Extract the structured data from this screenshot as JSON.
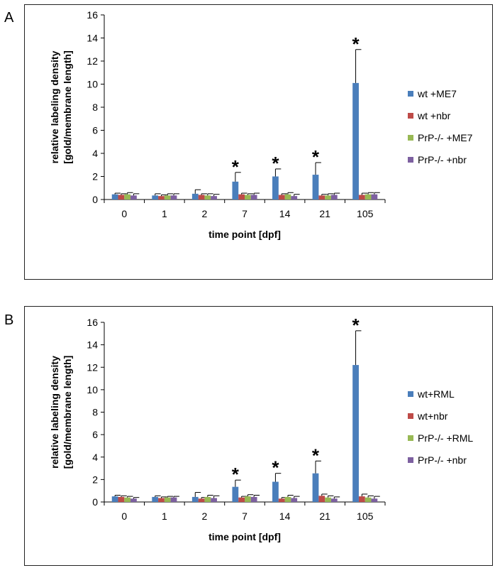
{
  "chart_data": [
    {
      "panel_label": "A",
      "type": "bar",
      "categories": [
        "0",
        "1",
        "2",
        "7",
        "14",
        "21",
        "105"
      ],
      "xlabel": "time point [dpf]",
      "ylabel_lines": [
        "relative labeling density",
        "[gold/membrane length]"
      ],
      "ylim": [
        0,
        16
      ],
      "yticks": [
        0,
        2,
        4,
        6,
        8,
        10,
        12,
        14,
        16
      ],
      "legend_position": "right",
      "series": [
        {
          "name": "wt +ME7",
          "color": "#4a7ebb",
          "values": [
            0.45,
            0.35,
            0.5,
            1.55,
            2.0,
            2.15,
            10.1
          ],
          "errors": [
            0.1,
            0.15,
            0.35,
            0.8,
            0.65,
            1.05,
            2.9
          ]
        },
        {
          "name": "wt +nbr",
          "color": "#be4b48",
          "values": [
            0.4,
            0.3,
            0.4,
            0.45,
            0.4,
            0.35,
            0.4
          ],
          "errors": [
            0.1,
            0.1,
            0.1,
            0.1,
            0.1,
            0.1,
            0.15
          ]
        },
        {
          "name": "PrP-/- +ME7",
          "color": "#98b954",
          "values": [
            0.45,
            0.35,
            0.35,
            0.4,
            0.45,
            0.35,
            0.45
          ],
          "errors": [
            0.15,
            0.15,
            0.15,
            0.1,
            0.15,
            0.15,
            0.15
          ]
        },
        {
          "name": "PrP-/- +nbr",
          "color": "#7d60a0",
          "values": [
            0.35,
            0.35,
            0.3,
            0.4,
            0.3,
            0.4,
            0.45
          ],
          "errors": [
            0.15,
            0.15,
            0.15,
            0.15,
            0.15,
            0.15,
            0.15
          ]
        }
      ],
      "annotations": [
        {
          "text": "*",
          "category": "7"
        },
        {
          "text": "*",
          "category": "14"
        },
        {
          "text": "*",
          "category": "21"
        },
        {
          "text": "*",
          "category": "105"
        }
      ]
    },
    {
      "panel_label": "B",
      "type": "bar",
      "categories": [
        "0",
        "1",
        "2",
        "7",
        "14",
        "21",
        "105"
      ],
      "xlabel": "time point [dpf]",
      "ylabel_lines": [
        "relative labeling density",
        "[gold/membrane length]"
      ],
      "ylim": [
        0,
        16
      ],
      "yticks": [
        0,
        2,
        4,
        6,
        8,
        10,
        12,
        14,
        16
      ],
      "legend_position": "right",
      "series": [
        {
          "name": "wt+RML",
          "color": "#4a7ebb",
          "values": [
            0.5,
            0.45,
            0.45,
            1.35,
            1.8,
            2.55,
            12.2
          ],
          "errors": [
            0.1,
            0.1,
            0.4,
            0.6,
            0.75,
            1.1,
            3.05
          ]
        },
        {
          "name": "wt+nbr",
          "color": "#be4b48",
          "values": [
            0.45,
            0.35,
            0.3,
            0.4,
            0.3,
            0.55,
            0.5
          ],
          "errors": [
            0.1,
            0.1,
            0.1,
            0.1,
            0.1,
            0.15,
            0.2
          ]
        },
        {
          "name": "PrP-/- +RML",
          "color": "#98b954",
          "values": [
            0.4,
            0.4,
            0.45,
            0.5,
            0.45,
            0.4,
            0.4
          ],
          "errors": [
            0.1,
            0.1,
            0.15,
            0.15,
            0.15,
            0.15,
            0.15
          ]
        },
        {
          "name": "PrP-/- +nbr",
          "color": "#7d60a0",
          "values": [
            0.3,
            0.4,
            0.35,
            0.45,
            0.35,
            0.3,
            0.3
          ],
          "errors": [
            0.1,
            0.1,
            0.2,
            0.15,
            0.15,
            0.15,
            0.2
          ]
        }
      ],
      "annotations": [
        {
          "text": "*",
          "category": "7"
        },
        {
          "text": "*",
          "category": "14"
        },
        {
          "text": "*",
          "category": "21"
        },
        {
          "text": "*",
          "category": "105"
        }
      ]
    }
  ]
}
